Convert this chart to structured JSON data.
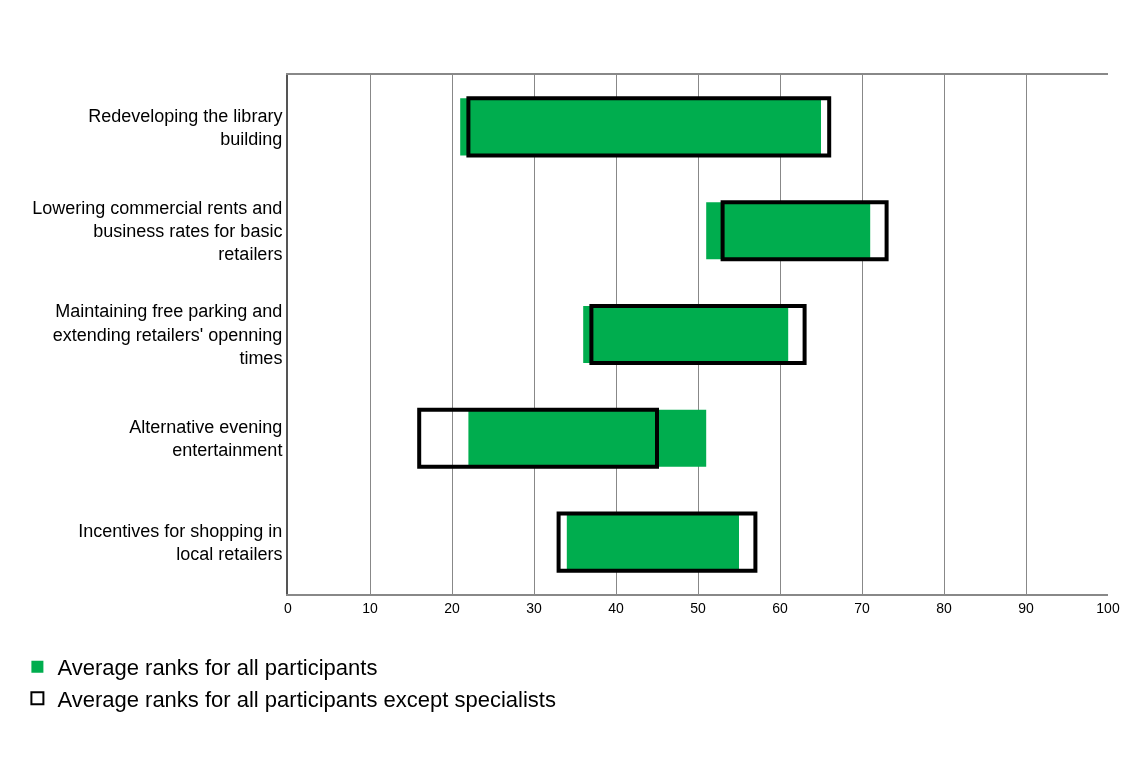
{
  "chart_data": {
    "type": "bar",
    "orientation": "horizontal",
    "categories": [
      "Redeveloping the library building",
      "Lowering commercial rents and business rates for basic retailers",
      "Maintaining free parking and extending retailers' openning times",
      "Alternative evening entertainment",
      "Incentives for shopping in local retailers"
    ],
    "series": [
      {
        "name": "Average ranks for all participants",
        "color": "#00ad4e",
        "base": [
          21,
          51,
          36,
          22,
          34
        ],
        "values": [
          44,
          20,
          25,
          29,
          21
        ]
      },
      {
        "name": "Average ranks for all participants except specialists",
        "color": "#000000",
        "base": [
          22,
          53,
          37,
          16,
          33
        ],
        "values": [
          44,
          20,
          26,
          29,
          24
        ]
      }
    ],
    "xlim": [
      0,
      100
    ],
    "xticks": [
      0,
      10,
      20,
      30,
      40,
      50,
      60,
      70,
      80,
      90,
      100
    ],
    "grid": "x",
    "legend": "bottom left"
  }
}
